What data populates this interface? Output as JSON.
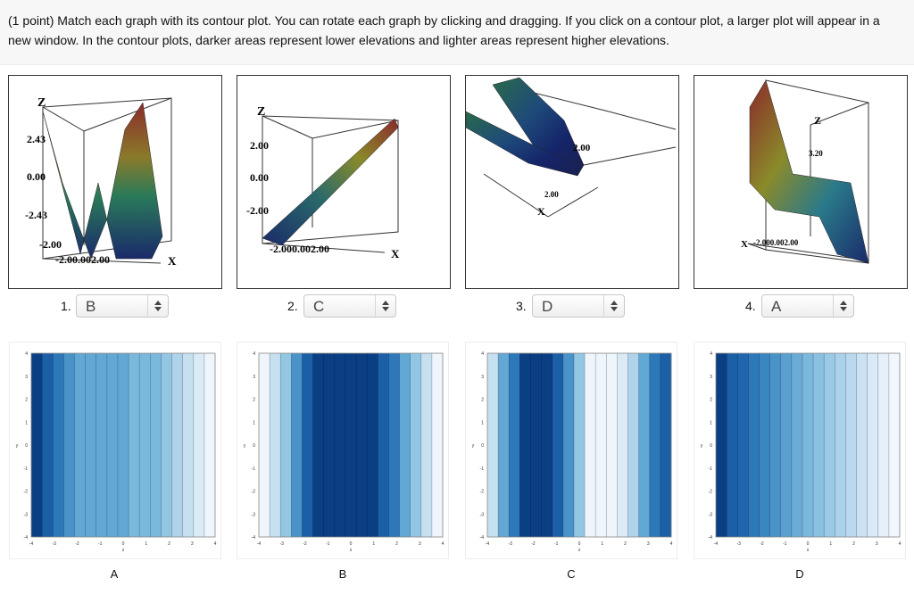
{
  "prompt": "(1 point) Match each graph with its contour plot. You can rotate each graph by clicking and dragging. If you click on a contour plot, a larger plot will appear in a new window. In the contour plots, darker areas represent lower elevations and lighter areas represent higher elevations.",
  "graphs": [
    {
      "number": "1.",
      "selected": "B",
      "labels": [
        "Z",
        "2.43",
        "0.00",
        "-2.43",
        "-2.00",
        "-2.00.002.00",
        "X"
      ]
    },
    {
      "number": "2.",
      "selected": "C",
      "labels": [
        "Z",
        "2.00",
        "0.00",
        "-2.00",
        "-2.000.002.00",
        "X"
      ]
    },
    {
      "number": "3.",
      "selected": "D",
      "labels": [
        "2.00",
        "2.00",
        "X"
      ]
    },
    {
      "number": "4.",
      "selected": "A",
      "labels": [
        "Z",
        "3.20",
        "X",
        "-2.000.002.00"
      ]
    }
  ],
  "contours": [
    {
      "label": "A",
      "ticks_y": [
        "4",
        "3",
        "2",
        "1",
        "0",
        "-1",
        "-2",
        "-3",
        "-4"
      ],
      "ticks_x": [
        "-4",
        "-3",
        "-2",
        "-1",
        "0",
        "1",
        "2",
        "3",
        "4"
      ],
      "xlabel": "x",
      "ylabel": "y",
      "bands": [
        "#0b3f84",
        "#1b5fa6",
        "#2d78b8",
        "#4a93c8",
        "#62a8d4",
        "#62a8d4",
        "#62a8d4",
        "#62a8d4",
        "#62a8d4",
        "#7ab8dc",
        "#7ab8dc",
        "#7ab8dc",
        "#93c6e3",
        "#aed3ea",
        "#c6e0f0",
        "#dbebf6",
        "#eef5fb"
      ]
    },
    {
      "label": "B",
      "ticks_y": [
        "4",
        "3",
        "2",
        "1",
        "0",
        "-1",
        "-2",
        "-3",
        "-4"
      ],
      "ticks_x": [
        "-4",
        "-3",
        "-2",
        "-1",
        "0",
        "1",
        "2",
        "3",
        "4"
      ],
      "xlabel": "x",
      "ylabel": "y",
      "bands": [
        "#eef5fb",
        "#c6e0f0",
        "#93c6e3",
        "#4a93c8",
        "#1b5fa6",
        "#0b3f84",
        "#0b3f84",
        "#0b3f84",
        "#0b3f84",
        "#0b3f84",
        "#0b3f84",
        "#1b5fa6",
        "#2d78b8",
        "#62a8d4",
        "#93c6e3",
        "#c6e0f0",
        "#eef5fb"
      ]
    },
    {
      "label": "C",
      "ticks_y": [
        "4",
        "3",
        "2",
        "1",
        "0",
        "-1",
        "-2",
        "-3",
        "-4"
      ],
      "ticks_x": [
        "-4",
        "-3",
        "-2",
        "-1",
        "0",
        "1",
        "2",
        "3",
        "4"
      ],
      "xlabel": "x",
      "ylabel": "y",
      "bands": [
        "#c6e0f0",
        "#62a8d4",
        "#2d78b8",
        "#0b3f84",
        "#0b3f84",
        "#0b3f84",
        "#1b5fa6",
        "#4a93c8",
        "#93c6e3",
        "#eef5fb",
        "#eef5fb",
        "#eef5fb",
        "#dbebf6",
        "#aed3ea",
        "#62a8d4",
        "#2d78b8",
        "#1b5fa6"
      ]
    },
    {
      "label": "D",
      "ticks_y": [
        "4",
        "3",
        "2",
        "1",
        "0",
        "-1",
        "-2",
        "-3",
        "-4"
      ],
      "ticks_x": [
        "-4",
        "-3",
        "-2",
        "-1",
        "0",
        "1",
        "2",
        "3",
        "4"
      ],
      "xlabel": "x",
      "ylabel": "y",
      "bands": [
        "#0b3f84",
        "#1b5fa6",
        "#1f66ac",
        "#2d78b8",
        "#3a86c0",
        "#4a93c8",
        "#5aa0cf",
        "#6aacd6",
        "#7ab8dc",
        "#8ac0e0",
        "#9acae5",
        "#aad2ea",
        "#bad9ee",
        "#cae2f2",
        "#dae9f6",
        "#e6f0f9",
        "#f1f7fc"
      ]
    }
  ]
}
